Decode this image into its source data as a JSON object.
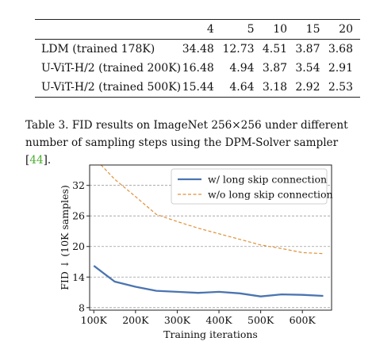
{
  "table": {
    "headers": [
      "",
      "4",
      "5",
      "10",
      "15",
      "20"
    ],
    "rows": [
      [
        "LDM (trained 178K)",
        "34.48",
        "12.73",
        "4.51",
        "3.87",
        "3.68"
      ],
      [
        "U-ViT-H/2 (trained 200K)",
        "16.48",
        "4.94",
        "3.87",
        "3.54",
        "2.91"
      ],
      [
        "U-ViT-H/2 (trained 500K)",
        "15.44",
        "4.64",
        "3.18",
        "2.92",
        "2.53"
      ]
    ]
  },
  "caption": {
    "label": "Table 3.",
    "text": "FID results on ImageNet 256×256 under different number of sampling steps using the DPM-Solver sampler [",
    "ref": "44",
    "tail": "]."
  },
  "chart_data": {
    "type": "line",
    "xlabel": "Training iterations",
    "ylabel": "FID ↓ (10K samples)",
    "xticks": [
      "100K",
      "200K",
      "300K",
      "400K",
      "500K",
      "600K"
    ],
    "xtick_values": [
      100,
      200,
      300,
      400,
      500,
      600
    ],
    "yticks": [
      8,
      14,
      20,
      26,
      32
    ],
    "xlim": [
      90,
      670
    ],
    "ylim": [
      7.5,
      36
    ],
    "grid": "horizontal-dashed",
    "legend_position": "top-right",
    "series": [
      {
        "name": "w/ long skip connection",
        "color": "#4a74b0",
        "style": "solid",
        "x": [
          100,
          150,
          200,
          250,
          300,
          350,
          400,
          450,
          500,
          550,
          600,
          650
        ],
        "y": [
          16.2,
          13.1,
          12.1,
          11.3,
          11.1,
          10.9,
          11.1,
          10.8,
          10.2,
          10.6,
          10.5,
          10.3
        ]
      },
      {
        "name": "w/o long skip connection",
        "color": "#e0913a",
        "style": "dashed",
        "x": [
          100,
          150,
          200,
          250,
          300,
          350,
          400,
          450,
          500,
          550,
          600,
          650
        ],
        "y": [
          37.5,
          33.2,
          29.8,
          26.3,
          24.9,
          23.6,
          22.5,
          21.4,
          20.3,
          19.6,
          18.8,
          18.6
        ]
      }
    ]
  }
}
